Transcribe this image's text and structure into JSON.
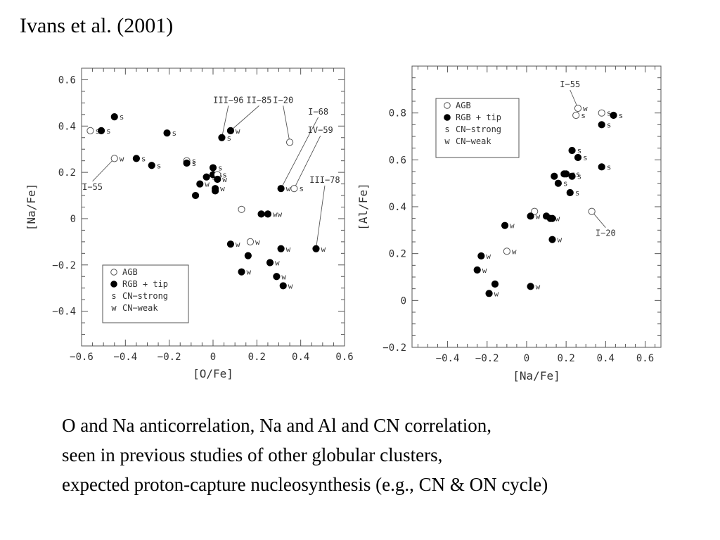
{
  "slide": {
    "title": "Ivans et al. (2001)",
    "caption_lines": [
      "O and Na anticorrelation, Na and Al and CN correlation,",
      "seen in previous studies of other globular clusters,",
      "expected proton-capture nucleosynthesis (e.g., CN & ON cycle)"
    ]
  },
  "chart_data": [
    {
      "type": "scatter",
      "title": "",
      "xlabel": "[O/Fe]",
      "ylabel": "[Na/Fe]",
      "xlim": [
        -0.6,
        0.6
      ],
      "ylim": [
        -0.55,
        0.65
      ],
      "xticks": [
        -0.6,
        -0.4,
        -0.2,
        0,
        0.2,
        0.4,
        0.6
      ],
      "yticks": [
        -0.4,
        -0.2,
        0,
        0.2,
        0.4,
        0.6
      ],
      "xtick_labels": [
        "−0.6",
        "−0.4",
        "−0.2",
        "0",
        "0.2",
        "0.4",
        "0.6"
      ],
      "ytick_labels": [
        "−0.4",
        "−0.2",
        "0",
        "0.2",
        "0.4",
        "0.6"
      ],
      "grid": false,
      "legend": {
        "placement": "bottom-left",
        "entries": [
          {
            "symbol": "open",
            "label": "AGB"
          },
          {
            "symbol": "filled",
            "label": "RGB + tip"
          },
          {
            "symbol": "s",
            "label": "CN−strong"
          },
          {
            "symbol": "w",
            "label": "CN−weak"
          }
        ]
      },
      "points": [
        {
          "x": -0.56,
          "y": 0.38,
          "filled": false,
          "tag": "s"
        },
        {
          "x": -0.51,
          "y": 0.38,
          "filled": true,
          "tag": "s"
        },
        {
          "x": -0.45,
          "y": 0.44,
          "filled": true,
          "tag": "s"
        },
        {
          "x": -0.45,
          "y": 0.26,
          "filled": false,
          "tag": "w"
        },
        {
          "x": -0.35,
          "y": 0.26,
          "filled": true,
          "tag": "s"
        },
        {
          "x": -0.28,
          "y": 0.23,
          "filled": true,
          "tag": "s"
        },
        {
          "x": -0.21,
          "y": 0.37,
          "filled": true,
          "tag": "s"
        },
        {
          "x": -0.12,
          "y": 0.25,
          "filled": false,
          "tag": "s"
        },
        {
          "x": -0.12,
          "y": 0.24,
          "filled": true,
          "tag": "s"
        },
        {
          "x": 0.0,
          "y": 0.22,
          "filled": true,
          "tag": "s"
        },
        {
          "x": -0.03,
          "y": 0.18,
          "filled": true,
          "tag": "s"
        },
        {
          "x": 0.0,
          "y": 0.19,
          "filled": true,
          "tag": "s"
        },
        {
          "x": 0.02,
          "y": 0.19,
          "filled": false,
          "tag": "s"
        },
        {
          "x": 0.02,
          "y": 0.17,
          "filled": true,
          "tag": "w"
        },
        {
          "x": -0.06,
          "y": 0.15,
          "filled": true,
          "tag": "w"
        },
        {
          "x": 0.01,
          "y": 0.13,
          "filled": true,
          "tag": "w"
        },
        {
          "x": 0.01,
          "y": 0.12,
          "filled": true,
          "tag": ""
        },
        {
          "x": -0.08,
          "y": 0.1,
          "filled": true,
          "tag": ""
        },
        {
          "x": 0.04,
          "y": 0.35,
          "filled": true,
          "tag": "s"
        },
        {
          "x": 0.08,
          "y": 0.38,
          "filled": true,
          "tag": "w"
        },
        {
          "x": 0.35,
          "y": 0.33,
          "filled": false,
          "tag": ""
        },
        {
          "x": 0.31,
          "y": 0.13,
          "filled": true,
          "tag": "w"
        },
        {
          "x": 0.37,
          "y": 0.13,
          "filled": false,
          "tag": "s"
        },
        {
          "x": 0.13,
          "y": 0.04,
          "filled": false,
          "tag": ""
        },
        {
          "x": 0.22,
          "y": 0.02,
          "filled": true,
          "tag": ""
        },
        {
          "x": 0.25,
          "y": 0.02,
          "filled": true,
          "tag": "ww"
        },
        {
          "x": 0.17,
          "y": -0.1,
          "filled": false,
          "tag": "w"
        },
        {
          "x": 0.08,
          "y": -0.11,
          "filled": true,
          "tag": "w"
        },
        {
          "x": 0.16,
          "y": -0.16,
          "filled": true,
          "tag": ""
        },
        {
          "x": 0.31,
          "y": -0.13,
          "filled": true,
          "tag": "w"
        },
        {
          "x": 0.47,
          "y": -0.13,
          "filled": true,
          "tag": "w"
        },
        {
          "x": 0.26,
          "y": -0.19,
          "filled": true,
          "tag": "w"
        },
        {
          "x": 0.13,
          "y": -0.23,
          "filled": true,
          "tag": "w"
        },
        {
          "x": 0.29,
          "y": -0.25,
          "filled": true,
          "tag": "w"
        },
        {
          "x": 0.32,
          "y": -0.29,
          "filled": true,
          "tag": "w"
        }
      ],
      "annotations": [
        {
          "text": "I−55",
          "tx": -0.55,
          "ty": 0.125,
          "px": -0.45,
          "py": 0.26
        },
        {
          "text": "III−96",
          "tx": 0.07,
          "ty": 0.5,
          "px": 0.04,
          "py": 0.35
        },
        {
          "text": "II−85",
          "tx": 0.21,
          "ty": 0.5,
          "px": 0.08,
          "py": 0.38
        },
        {
          "text": "I−20",
          "tx": 0.32,
          "ty": 0.5,
          "px": 0.35,
          "py": 0.33
        },
        {
          "text": "I−68",
          "tx": 0.48,
          "ty": 0.45,
          "px": 0.31,
          "py": 0.13
        },
        {
          "text": "IV−59",
          "tx": 0.49,
          "ty": 0.37,
          "px": 0.37,
          "py": 0.13
        },
        {
          "text": "III−78",
          "tx": 0.51,
          "ty": 0.155,
          "px": 0.47,
          "py": -0.13
        }
      ]
    },
    {
      "type": "scatter",
      "title": "",
      "xlabel": "[Na/Fe]",
      "ylabel": "[Al/Fe]",
      "xlim": [
        -0.58,
        0.68
      ],
      "ylim": [
        -0.2,
        1.0
      ],
      "xticks": [
        -0.4,
        -0.2,
        0,
        0.2,
        0.4,
        0.6
      ],
      "yticks": [
        -0.2,
        0,
        0.2,
        0.4,
        0.6,
        0.8
      ],
      "xtick_labels": [
        "−0.4",
        "−0.2",
        "0",
        "0.2",
        "0.4",
        "0.6"
      ],
      "ytick_labels": [
        "−0.2",
        "0",
        "0.2",
        "0.4",
        "0.6",
        "0.8"
      ],
      "grid": false,
      "legend": {
        "placement": "top-left",
        "entries": [
          {
            "symbol": "open",
            "label": "AGB"
          },
          {
            "symbol": "filled",
            "label": "RGB + tip"
          },
          {
            "symbol": "s",
            "label": "CN−strong"
          },
          {
            "symbol": "w",
            "label": "CN−weak"
          }
        ]
      },
      "points": [
        {
          "x": 0.26,
          "y": 0.82,
          "filled": false,
          "tag": "w"
        },
        {
          "x": 0.25,
          "y": 0.79,
          "filled": false,
          "tag": "s"
        },
        {
          "x": 0.38,
          "y": 0.8,
          "filled": false,
          "tag": "s"
        },
        {
          "x": 0.44,
          "y": 0.79,
          "filled": true,
          "tag": "s"
        },
        {
          "x": 0.38,
          "y": 0.75,
          "filled": true,
          "tag": "s"
        },
        {
          "x": 0.23,
          "y": 0.64,
          "filled": true,
          "tag": "s"
        },
        {
          "x": 0.26,
          "y": 0.61,
          "filled": true,
          "tag": "s"
        },
        {
          "x": 0.38,
          "y": 0.57,
          "filled": true,
          "tag": "s"
        },
        {
          "x": 0.19,
          "y": 0.54,
          "filled": true,
          "tag": ""
        },
        {
          "x": 0.2,
          "y": 0.54,
          "filled": true,
          "tag": "ss"
        },
        {
          "x": 0.14,
          "y": 0.53,
          "filled": true,
          "tag": ""
        },
        {
          "x": 0.23,
          "y": 0.53,
          "filled": true,
          "tag": "s"
        },
        {
          "x": 0.16,
          "y": 0.5,
          "filled": true,
          "tag": "s"
        },
        {
          "x": 0.22,
          "y": 0.46,
          "filled": true,
          "tag": "s"
        },
        {
          "x": 0.04,
          "y": 0.38,
          "filled": false,
          "tag": ""
        },
        {
          "x": 0.33,
          "y": 0.38,
          "filled": false,
          "tag": ""
        },
        {
          "x": 0.02,
          "y": 0.36,
          "filled": true,
          "tag": "w"
        },
        {
          "x": 0.1,
          "y": 0.36,
          "filled": true,
          "tag": ""
        },
        {
          "x": 0.12,
          "y": 0.35,
          "filled": true,
          "tag": "w"
        },
        {
          "x": 0.13,
          "y": 0.35,
          "filled": true,
          "tag": ""
        },
        {
          "x": -0.11,
          "y": 0.32,
          "filled": true,
          "tag": "w"
        },
        {
          "x": 0.13,
          "y": 0.26,
          "filled": true,
          "tag": "w"
        },
        {
          "x": -0.1,
          "y": 0.21,
          "filled": false,
          "tag": "w"
        },
        {
          "x": -0.23,
          "y": 0.19,
          "filled": true,
          "tag": "w"
        },
        {
          "x": -0.25,
          "y": 0.13,
          "filled": true,
          "tag": "w"
        },
        {
          "x": -0.16,
          "y": 0.07,
          "filled": true,
          "tag": ""
        },
        {
          "x": -0.19,
          "y": 0.03,
          "filled": true,
          "tag": "w"
        },
        {
          "x": 0.02,
          "y": 0.06,
          "filled": true,
          "tag": "w"
        }
      ],
      "annotations": [
        {
          "text": "I−55",
          "tx": 0.22,
          "ty": 0.91,
          "px": 0.26,
          "py": 0.82
        },
        {
          "text": "I−20",
          "tx": 0.4,
          "ty": 0.275,
          "px": 0.33,
          "py": 0.38
        }
      ]
    }
  ]
}
